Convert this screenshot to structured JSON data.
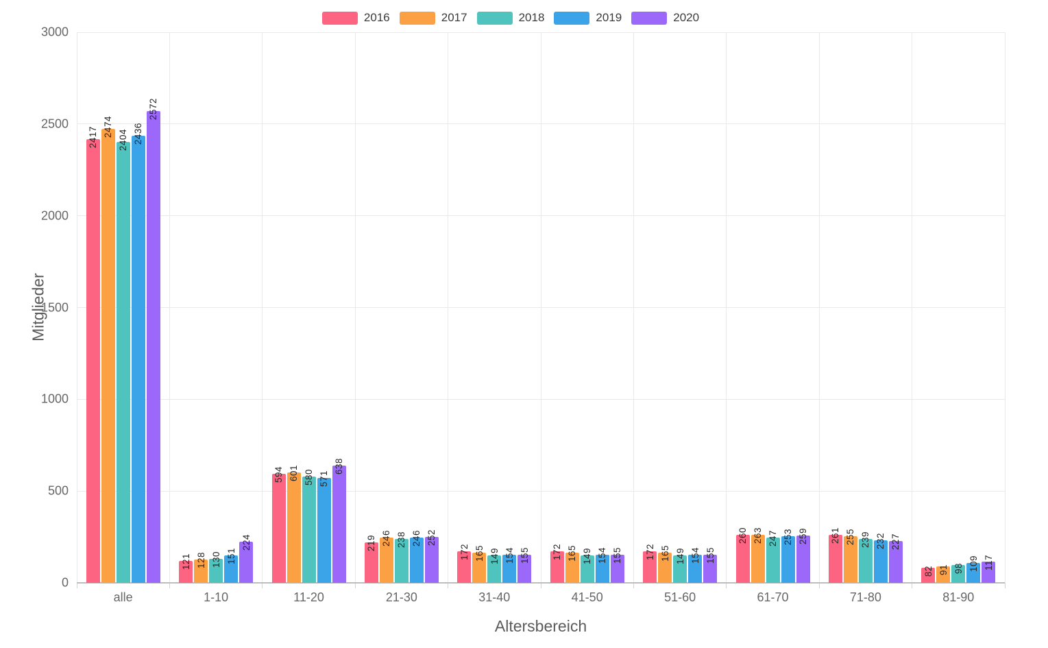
{
  "chart_data": {
    "type": "bar",
    "title": "",
    "xlabel": "Altersbereich",
    "ylabel": "Mitglieder",
    "categories": [
      "alle",
      "1-10",
      "11-20",
      "21-30",
      "31-40",
      "41-50",
      "51-60",
      "61-70",
      "71-80",
      "81-90"
    ],
    "series": [
      {
        "name": "2016",
        "color": "#FC6482",
        "values": [
          2417,
          121,
          594,
          219,
          172,
          172,
          172,
          260,
          261,
          82
        ]
      },
      {
        "name": "2017",
        "color": "#FCA044",
        "values": [
          2474,
          128,
          601,
          246,
          165,
          165,
          165,
          263,
          255,
          91
        ]
      },
      {
        "name": "2018",
        "color": "#4FC3BD",
        "values": [
          2404,
          130,
          580,
          238,
          149,
          149,
          149,
          247,
          239,
          98
        ]
      },
      {
        "name": "2019",
        "color": "#3BA3E8",
        "values": [
          2436,
          151,
          571,
          246,
          154,
          154,
          154,
          253,
          232,
          109
        ]
      },
      {
        "name": "2020",
        "color": "#9B68F9",
        "values": [
          2572,
          224,
          638,
          252,
          155,
          155,
          155,
          259,
          227,
          117
        ]
      }
    ],
    "ylim": [
      0,
      3000
    ],
    "yticks": [
      "0",
      "500",
      "1000",
      "1500",
      "2000",
      "2500",
      "3000"
    ],
    "grid": true,
    "legend_position": "top",
    "bar_labels": true
  },
  "colors": {
    "grid": "#e9e9e9",
    "axis_line": "#bdbdbd",
    "tick_text": "#666666",
    "axis_title_text": "#5a5a5a",
    "bar_label_text": "#262626",
    "background": "#ffffff"
  }
}
